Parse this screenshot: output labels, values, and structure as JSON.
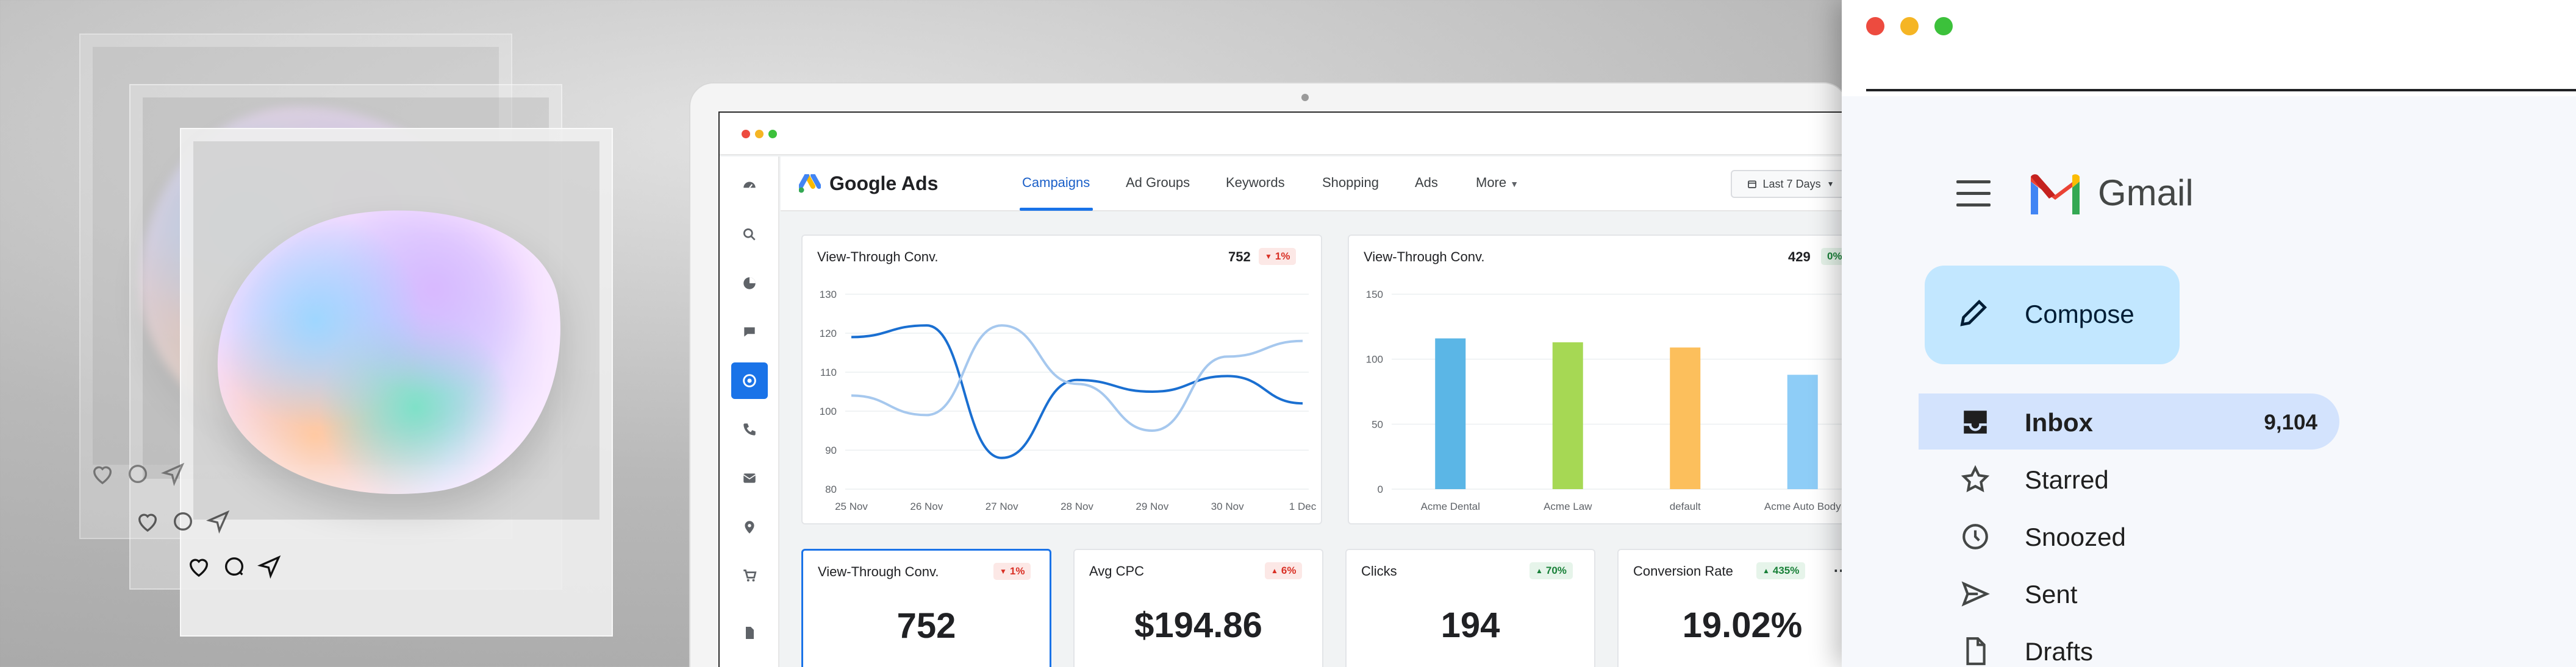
{
  "ads": {
    "app_name": "Google Ads",
    "tabs": [
      {
        "label": "Campaigns",
        "active": true
      },
      {
        "label": "Ad Groups",
        "active": false
      },
      {
        "label": "Keywords",
        "active": false
      },
      {
        "label": "Shopping",
        "active": false
      },
      {
        "label": "Ads",
        "active": false
      },
      {
        "label": "More",
        "active": false
      }
    ],
    "date_range": "Last 7 Days",
    "sidebar_icons": [
      "gauge-icon",
      "search-icon",
      "pie-chart-icon",
      "chat-icon",
      "target-icon",
      "phone-icon",
      "mail-icon",
      "location-pin-icon",
      "cart-icon",
      "document-icon"
    ],
    "active_sidebar_icon": "target-icon",
    "accent_color": "#1a73e8"
  },
  "line_card": {
    "title": "View-Through Conv.",
    "value": "752",
    "delta": "1%",
    "delta_direction": "down"
  },
  "bar_card": {
    "title": "View-Through Conv.",
    "value": "429",
    "delta": "0%",
    "delta_direction": "up"
  },
  "chart_data": [
    {
      "type": "line",
      "x": [
        "25 Nov",
        "26 Nov",
        "27 Nov",
        "28 Nov",
        "29 Nov",
        "30 Nov",
        "1 Dec"
      ],
      "ylim": [
        80,
        130
      ],
      "yticks": [
        "130",
        "120",
        "110",
        "100",
        "90",
        "80"
      ],
      "series": [
        {
          "color": "#1a6fd1",
          "values": [
            119,
            122,
            88,
            108,
            105,
            109,
            102
          ]
        },
        {
          "color": "#a6c8ee",
          "values": [
            104,
            99,
            122,
            107,
            95,
            114,
            118
          ]
        }
      ]
    },
    {
      "type": "bar",
      "categories": [
        "Acme Dental",
        "Acme Law",
        "default",
        "Acme Auto Body"
      ],
      "ylim": [
        0,
        150
      ],
      "yticks": [
        "150",
        "100",
        "50",
        "0"
      ],
      "values": [
        116,
        113,
        109,
        88
      ],
      "colors": [
        "#5bb6e6",
        "#a6d854",
        "#fcbf5c",
        "#8ecdf7"
      ]
    }
  ],
  "metrics": [
    {
      "title": "View-Through Conv.",
      "delta": "1%",
      "delta_direction": "down",
      "value": "752"
    },
    {
      "title": "Avg CPC",
      "delta": "6%",
      "delta_direction": "up-bad",
      "value": "$194.86"
    },
    {
      "title": "Clicks",
      "delta": "70%",
      "delta_direction": "up",
      "value": "194"
    },
    {
      "title": "Conversion Rate",
      "delta": "435%",
      "delta_direction": "up",
      "value": "19.02%"
    }
  ],
  "gmail": {
    "app_name": "Gmail",
    "compose_label": "Compose",
    "nav": [
      {
        "label": "Inbox",
        "count": "9,104",
        "active": true,
        "icon": "inbox-icon"
      },
      {
        "label": "Starred",
        "count": "",
        "active": false,
        "icon": "star-icon"
      },
      {
        "label": "Snoozed",
        "count": "",
        "active": false,
        "icon": "clock-icon"
      },
      {
        "label": "Sent",
        "count": "",
        "active": false,
        "icon": "send-icon"
      },
      {
        "label": "Drafts",
        "count": "",
        "active": false,
        "icon": "draft-icon"
      }
    ]
  }
}
